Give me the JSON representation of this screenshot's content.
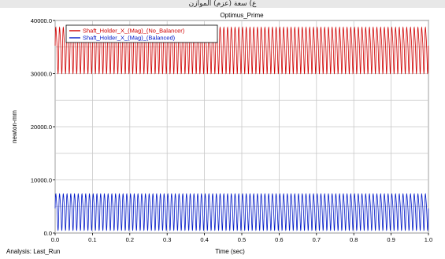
{
  "header": {
    "text": "ع) سعة (عزم) الموازن"
  },
  "footer": {
    "analysis": "Analysis:  Last_Run"
  },
  "chart_data": {
    "type": "line",
    "title": "Optimus_Prime",
    "xlabel": "Time (sec)",
    "ylabel": "newton-mm",
    "xlim": [
      0.0,
      1.0
    ],
    "ylim": [
      0.0,
      40000.0
    ],
    "x_ticks": [
      "0.0",
      "0.1",
      "0.2",
      "0.3",
      "0.4",
      "0.5",
      "0.6",
      "0.7",
      "0.8",
      "0.9",
      "1.0"
    ],
    "y_ticks": [
      "0.0",
      "10000.0",
      "20000.0",
      "30000.0",
      "40000.0"
    ],
    "y_tick_values": [
      0,
      10000,
      20000,
      30000,
      40000
    ],
    "grid": true,
    "legend_position": "top-left",
    "cycles": 100,
    "series": [
      {
        "name": "Shaft_Holder_X_(Mag)_(No_Balancer)",
        "color": "#d00000",
        "min": 30000,
        "max": 39500,
        "mean": 35000
      },
      {
        "name": "Shaft_Holder_X_(Mag)_(Balanced)",
        "color": "#0018c8",
        "min": 500,
        "max": 8000,
        "mean": 4500
      }
    ]
  }
}
